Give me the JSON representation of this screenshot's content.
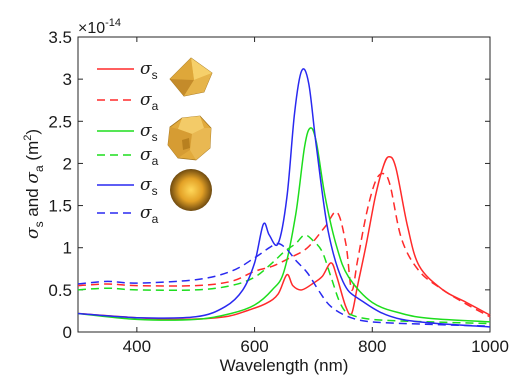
{
  "chart_data": {
    "type": "line",
    "xlabel": "Wavelength (nm)",
    "ylabel": {
      "parts": [
        "σ",
        "s",
        " and ",
        "σ",
        "a",
        " (m",
        "2",
        ")"
      ]
    },
    "exponent_label": "×10",
    "exponent_power": "-14",
    "xlim": [
      300,
      1000
    ],
    "ylim": [
      0,
      3.5
    ],
    "x_ticks": [
      400,
      600,
      800,
      1000
    ],
    "y_ticks": [
      0,
      0.5,
      1,
      1.5,
      2,
      2.5,
      3,
      3.5
    ],
    "y_tick_labels": [
      "0",
      "0.5",
      "1",
      "1.5",
      "2",
      "2.5",
      "3",
      "3.5"
    ],
    "grid": false,
    "legend_position": "top-left",
    "legend_shapes": [
      "octahedron",
      "truncated-polyhedron",
      "sphere"
    ],
    "series": [
      {
        "name": "σs",
        "symbol": "σ",
        "sub": "s",
        "shape": "octahedron",
        "color": "#ff2a2a",
        "dash": "solid",
        "points": [
          [
            300,
            0.22
          ],
          [
            400,
            0.17
          ],
          [
            480,
            0.15
          ],
          [
            550,
            0.18
          ],
          [
            590,
            0.26
          ],
          [
            620,
            0.34
          ],
          [
            640,
            0.45
          ],
          [
            655,
            0.68
          ],
          [
            665,
            0.55
          ],
          [
            680,
            0.5
          ],
          [
            700,
            0.58
          ],
          [
            715,
            0.66
          ],
          [
            730,
            0.82
          ],
          [
            740,
            0.65
          ],
          [
            755,
            0.3
          ],
          [
            765,
            0.22
          ],
          [
            775,
            0.55
          ],
          [
            790,
            1.05
          ],
          [
            805,
            1.6
          ],
          [
            818,
            1.95
          ],
          [
            828,
            2.08
          ],
          [
            840,
            1.95
          ],
          [
            860,
            1.25
          ],
          [
            880,
            0.78
          ],
          [
            920,
            0.5
          ],
          [
            960,
            0.35
          ],
          [
            1000,
            0.2
          ]
        ]
      },
      {
        "name": "σa",
        "symbol": "σ",
        "sub": "a",
        "shape": "octahedron",
        "color": "#ff2a2a",
        "dash": "dashed",
        "points": [
          [
            300,
            0.55
          ],
          [
            350,
            0.57
          ],
          [
            400,
            0.55
          ],
          [
            500,
            0.55
          ],
          [
            560,
            0.6
          ],
          [
            600,
            0.72
          ],
          [
            630,
            0.78
          ],
          [
            660,
            0.88
          ],
          [
            690,
            1.0
          ],
          [
            720,
            1.25
          ],
          [
            740,
            1.42
          ],
          [
            755,
            1.05
          ],
          [
            765,
            0.5
          ],
          [
            775,
            0.85
          ],
          [
            790,
            1.4
          ],
          [
            805,
            1.78
          ],
          [
            818,
            1.88
          ],
          [
            830,
            1.75
          ],
          [
            850,
            1.1
          ],
          [
            880,
            0.72
          ],
          [
            920,
            0.5
          ],
          [
            960,
            0.33
          ],
          [
            1000,
            0.18
          ]
        ]
      },
      {
        "name": "σs",
        "symbol": "σ",
        "sub": "s",
        "shape": "truncated-polyhedron",
        "color": "#1ddd1d",
        "dash": "solid",
        "points": [
          [
            300,
            0.22
          ],
          [
            400,
            0.15
          ],
          [
            500,
            0.15
          ],
          [
            560,
            0.22
          ],
          [
            600,
            0.32
          ],
          [
            630,
            0.5
          ],
          [
            650,
            0.72
          ],
          [
            670,
            1.4
          ],
          [
            685,
            2.2
          ],
          [
            695,
            2.42
          ],
          [
            705,
            2.25
          ],
          [
            720,
            1.6
          ],
          [
            740,
            1.0
          ],
          [
            760,
            0.65
          ],
          [
            800,
            0.35
          ],
          [
            850,
            0.22
          ],
          [
            900,
            0.16
          ],
          [
            1000,
            0.12
          ]
        ]
      },
      {
        "name": "σa",
        "symbol": "σ",
        "sub": "a",
        "shape": "truncated-polyhedron",
        "color": "#1ddd1d",
        "dash": "dashed",
        "points": [
          [
            300,
            0.5
          ],
          [
            350,
            0.52
          ],
          [
            400,
            0.5
          ],
          [
            500,
            0.5
          ],
          [
            560,
            0.55
          ],
          [
            600,
            0.65
          ],
          [
            630,
            0.82
          ],
          [
            650,
            0.95
          ],
          [
            670,
            1.05
          ],
          [
            685,
            1.15
          ],
          [
            700,
            1.08
          ],
          [
            715,
            0.95
          ],
          [
            730,
            0.65
          ],
          [
            745,
            0.35
          ],
          [
            760,
            0.22
          ],
          [
            800,
            0.15
          ],
          [
            900,
            0.12
          ],
          [
            1000,
            0.1
          ]
        ]
      },
      {
        "name": "σs",
        "symbol": "σ",
        "sub": "s",
        "shape": "sphere",
        "color": "#2929f0",
        "dash": "solid",
        "points": [
          [
            300,
            0.22
          ],
          [
            400,
            0.17
          ],
          [
            500,
            0.18
          ],
          [
            550,
            0.3
          ],
          [
            580,
            0.5
          ],
          [
            600,
            0.82
          ],
          [
            615,
            1.28
          ],
          [
            625,
            1.15
          ],
          [
            640,
            1.05
          ],
          [
            655,
            1.6
          ],
          [
            668,
            2.6
          ],
          [
            680,
            3.1
          ],
          [
            692,
            2.95
          ],
          [
            705,
            2.2
          ],
          [
            725,
            1.2
          ],
          [
            750,
            0.6
          ],
          [
            780,
            0.38
          ],
          [
            850,
            0.15
          ],
          [
            1000,
            0.06
          ]
        ]
      },
      {
        "name": "σa",
        "symbol": "σ",
        "sub": "a",
        "shape": "sphere",
        "color": "#2929f0",
        "dash": "dashed",
        "points": [
          [
            300,
            0.57
          ],
          [
            350,
            0.6
          ],
          [
            400,
            0.58
          ],
          [
            500,
            0.62
          ],
          [
            560,
            0.72
          ],
          [
            600,
            0.88
          ],
          [
            625,
            1.0
          ],
          [
            640,
            1.05
          ],
          [
            655,
            0.98
          ],
          [
            670,
            0.85
          ],
          [
            690,
            0.7
          ],
          [
            710,
            0.48
          ],
          [
            730,
            0.3
          ],
          [
            760,
            0.18
          ],
          [
            800,
            0.12
          ],
          [
            900,
            0.09
          ],
          [
            1000,
            0.07
          ]
        ]
      }
    ]
  }
}
